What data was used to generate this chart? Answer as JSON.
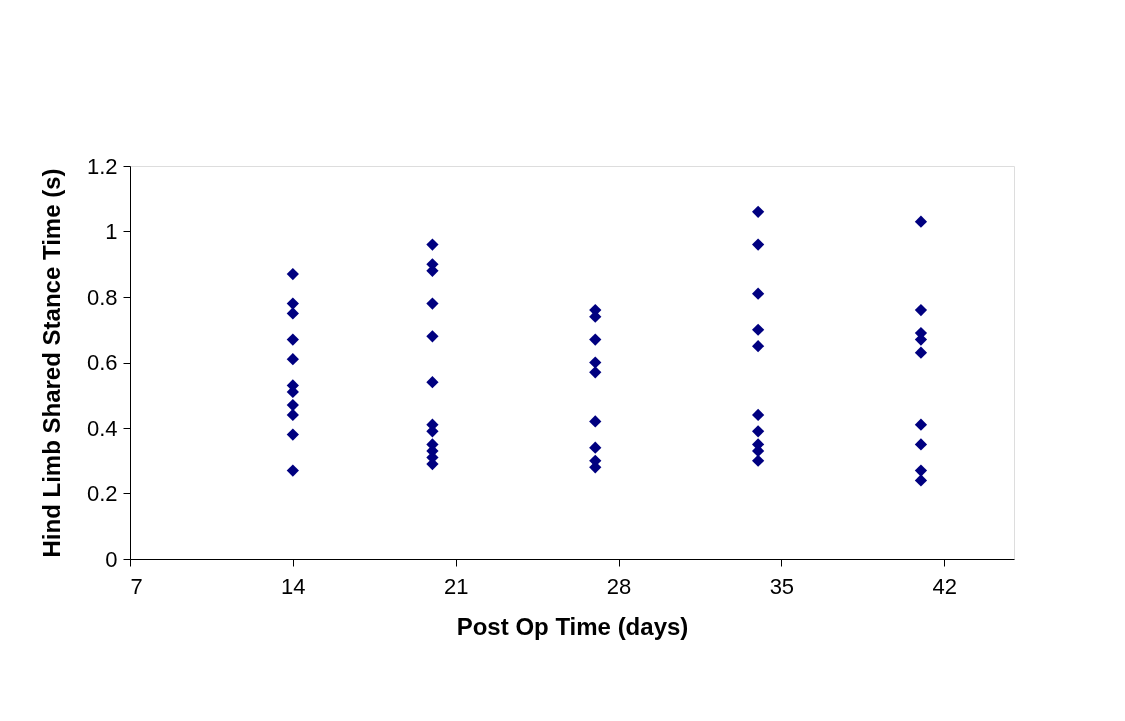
{
  "chart_data": {
    "type": "scatter",
    "xlabel": "Post Op Time (days)",
    "ylabel": "Hind Limb Shared Stance Time (s)",
    "x": [
      14,
      14,
      14,
      14,
      14,
      14,
      14,
      14,
      14,
      14,
      14,
      20,
      20,
      20,
      20,
      20,
      20,
      20,
      20,
      20,
      20,
      20,
      20,
      27,
      27,
      27,
      27,
      27,
      27,
      27,
      27,
      27,
      34,
      34,
      34,
      34,
      34,
      34,
      34,
      34,
      34,
      34,
      41,
      41,
      41,
      41,
      41,
      41,
      41,
      41,
      41
    ],
    "series": [
      {
        "color": "#000080",
        "values": [
          0.87,
          0.78,
          0.75,
          0.67,
          0.61,
          0.53,
          0.51,
          0.47,
          0.44,
          0.38,
          0.27,
          0.96,
          0.9,
          0.88,
          0.78,
          0.68,
          0.54,
          0.41,
          0.39,
          0.35,
          0.33,
          0.31,
          0.29,
          0.76,
          0.74,
          0.67,
          0.6,
          0.57,
          0.42,
          0.34,
          0.3,
          0.28,
          1.06,
          0.96,
          0.81,
          0.7,
          0.65,
          0.44,
          0.39,
          0.35,
          0.33,
          0.3,
          1.03,
          0.76,
          0.69,
          0.67,
          0.63,
          0.41,
          0.35,
          0.27,
          0.24
        ]
      }
    ],
    "xlim": [
      7,
      45
    ],
    "xticks": [
      7,
      14,
      21,
      28,
      35,
      42
    ],
    "ylim": [
      0,
      1.2
    ],
    "yticks": [
      0,
      0.2,
      0.4,
      0.6,
      0.8,
      1,
      1.2
    ],
    "marker": "diamond",
    "grid": false,
    "legend": false
  }
}
